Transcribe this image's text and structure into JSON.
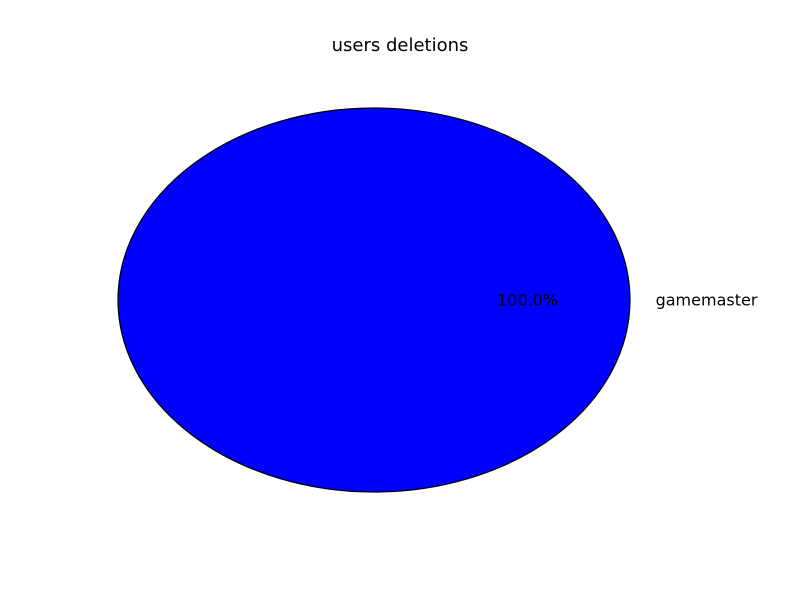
{
  "chart_data": {
    "type": "pie",
    "title": "users deletions",
    "slices": [
      {
        "label": "gamemaster",
        "value": 100.0,
        "pct_label": "100.0%",
        "color": "#0000ff"
      }
    ],
    "edge_color": "#000000",
    "legend": "none"
  }
}
